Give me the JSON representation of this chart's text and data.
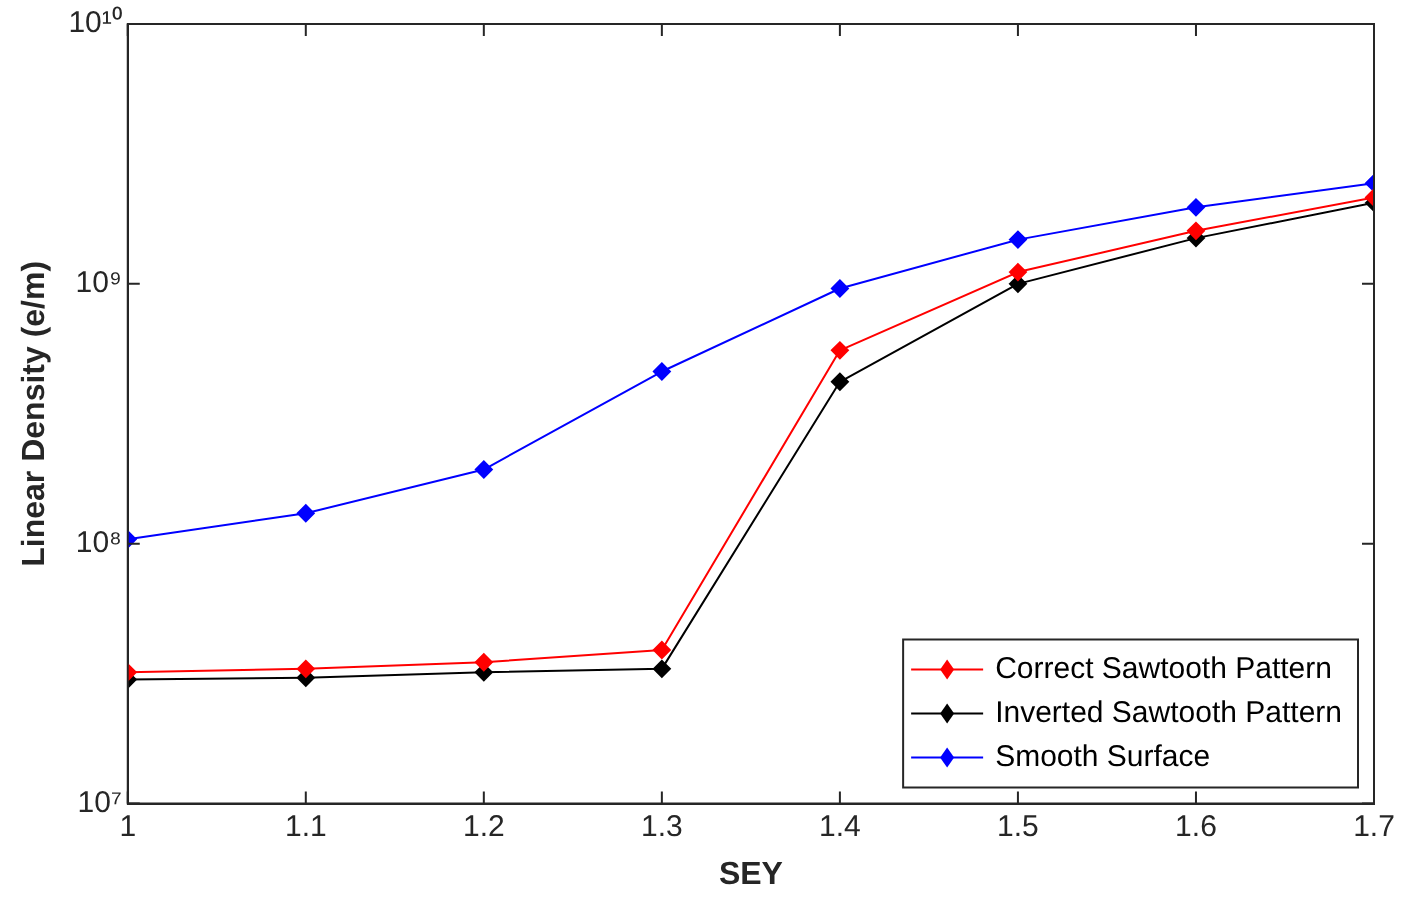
{
  "chart_data": {
    "type": "line",
    "xlabel": "SEY",
    "ylabel": "Linear Density (e/m)",
    "x": [
      1,
      1.1,
      1.2,
      1.3,
      1.4,
      1.5,
      1.6,
      1.7
    ],
    "series": [
      {
        "name": "Correct Sawtooth Pattern",
        "color": "#ff0000",
        "values": [
          32000000.0,
          33000000.0,
          35000000.0,
          39000000.0,
          555000000.0,
          1110000000.0,
          1600000000.0,
          2150000000.0
        ]
      },
      {
        "name": "Inverted Sawtooth Pattern",
        "color": "#000000",
        "values": [
          30000000.0,
          30500000.0,
          32000000.0,
          33000000.0,
          420000000.0,
          1000000000.0,
          1500000000.0,
          2050000000.0
        ]
      },
      {
        "name": "Smooth Surface",
        "color": "#0000ff",
        "values": [
          104000000.0,
          131000000.0,
          193000000.0,
          460000000.0,
          960000000.0,
          1480000000.0,
          1970000000.0,
          2440000000.0
        ]
      }
    ],
    "xlim": [
      1,
      1.7
    ],
    "xticks": [
      1,
      1.1,
      1.2,
      1.3,
      1.4,
      1.5,
      1.6,
      1.7
    ],
    "ylim": [
      10000000.0,
      10000000000.0
    ],
    "yticks": [
      {
        "value": 10000000.0,
        "label": "10⁷"
      },
      {
        "value": 100000000.0,
        "label": "10⁸"
      },
      {
        "value": 1000000000.0,
        "label": "10⁹"
      },
      {
        "value": 10000000000.0,
        "label": "10¹⁰"
      }
    ],
    "log": "y",
    "grid": false,
    "legend": "bottom right",
    "marker": "diamond",
    "line_style": "solid"
  }
}
